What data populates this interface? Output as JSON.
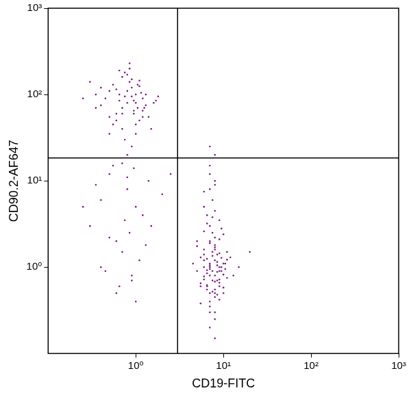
{
  "chart_data": {
    "type": "scatter",
    "log": true,
    "grid": false,
    "color": "#7d1a87",
    "marker": "circle",
    "x_label": "CD19-FITC",
    "y_label": "CD90.2-AF647",
    "xlim": [
      0.1,
      1000
    ],
    "ylim": [
      0.1,
      1000
    ],
    "xticks": [
      {
        "value": 1,
        "label": "10⁰"
      },
      {
        "value": 10,
        "label": "10¹"
      },
      {
        "value": 100,
        "label": "10²"
      },
      {
        "value": 1000,
        "label": "10³"
      }
    ],
    "yticks": [
      {
        "value": 1,
        "label": "10⁰"
      },
      {
        "value": 10,
        "label": "10¹"
      },
      {
        "value": 100,
        "label": "10²"
      },
      {
        "value": 1000,
        "label": "10³"
      }
    ],
    "quadrant_x": 3,
    "quadrant_y": 18.4,
    "x": [
      0.8,
      1.0,
      0.6,
      1.2,
      0.9,
      0.7,
      1.1,
      0.5,
      1.3,
      0.85,
      0.95,
      0.75,
      1.05,
      0.65,
      1.4,
      0.55,
      0.9,
      1.15,
      0.7,
      0.8,
      0.45,
      1.0,
      0.6,
      1.25,
      0.85,
      0.35,
      1.6,
      0.75,
      0.95,
      1.1,
      0.3,
      0.5,
      0.9,
      1.8,
      0.7,
      0.4,
      1.0,
      0.65,
      1.2,
      0.8,
      0.25,
      0.55,
      1.5,
      0.95,
      0.6,
      1.05,
      0.85,
      0.4,
      1.3,
      0.7,
      0.9,
      1.0,
      0.75,
      0.5,
      1.2,
      0.35,
      0.65,
      1.7,
      0.8,
      1.1,
      0.5,
      0.8,
      1.0,
      0.3,
      0.6,
      1.4,
      0.7,
      0.9,
      0.4,
      1.2,
      0.55,
      0.85,
      1.1,
      0.35,
      0.65,
      2.0,
      0.75,
      0.45,
      0.95,
      1.3,
      0.6,
      0.8,
      0.25,
      1.0,
      0.5,
      1.5,
      0.7,
      0.9,
      0.4,
      2.5,
      7,
      8,
      6,
      9,
      7.5,
      8.5,
      6.5,
      10,
      7,
      8,
      5.5,
      9.5,
      7,
      8,
      6,
      11,
      7.5,
      8,
      6.5,
      9,
      7,
      8.5,
      5,
      10,
      7,
      8,
      6,
      9,
      7.5,
      12,
      6.5,
      8,
      7,
      9.5,
      5.5,
      8,
      7,
      10.5,
      6,
      8.5,
      7,
      9,
      6.5,
      8,
      7.5,
      11,
      5,
      8,
      7,
      9,
      6,
      8.5,
      7,
      10,
      7.5,
      8,
      6.5,
      9,
      4.5,
      13,
      7,
      8,
      6,
      9,
      7.5,
      8.5,
      6.5,
      10,
      7,
      8,
      5.5,
      9.5,
      7,
      8,
      6,
      11,
      7.5,
      8,
      6.5,
      9,
      7,
      8.5,
      5,
      10,
      7,
      8,
      6,
      9,
      7.5,
      15,
      6.5,
      8,
      7,
      9.5,
      5.5,
      8,
      7,
      10.5,
      6,
      20
    ],
    "values": [
      80,
      100,
      60,
      90,
      120,
      70,
      50,
      110,
      75,
      140,
      65,
      95,
      130,
      85,
      55,
      45,
      150,
      105,
      40,
      170,
      90,
      35,
      115,
      70,
      200,
      100,
      80,
      30,
      60,
      125,
      140,
      55,
      25,
      95,
      160,
      75,
      45,
      190,
      65,
      110,
      90,
      130,
      40,
      85,
      50,
      70,
      230,
      120,
      100,
      60,
      95,
      80,
      180,
      35,
      55,
      70,
      100,
      85,
      20,
      145,
      12,
      8,
      5,
      3,
      2,
      10,
      1.5,
      0.8,
      6,
      4,
      15,
      2.5,
      1.2,
      9,
      0.6,
      7,
      3.5,
      0.9,
      14,
      1.8,
      0.5,
      11,
      5,
      0.4,
      2.2,
      3,
      16,
      0.7,
      1,
      12,
      1.0,
      0.8,
      1.2,
      0.9,
      1.5,
      0.7,
      0.6,
      1.1,
      2.0,
      0.5,
      1.3,
      0.9,
      0.4,
      1.8,
      1.0,
      0.75,
      2.5,
      1.2,
      0.85,
      0.6,
      3.0,
      1.4,
      0.9,
      0.5,
      0.35,
      2.2,
      1.6,
      1.0,
      0.7,
      1.3,
      4.0,
      0.55,
      1.1,
      2.8,
      0.65,
      1.7,
      0.3,
      0.95,
      5.0,
      1.05,
      0.8,
      3.5,
      1.25,
      0.45,
      6.0,
      1.5,
      2.0,
      0.25,
      1.9,
      0.72,
      7.5,
      1.15,
      0.5,
      2.4,
      0.9,
      9.0,
      0.62,
      1.45,
      1.1,
      0.8,
      12,
      0.68,
      2.6,
      0.42,
      1.35,
      0.88,
      3.2,
      0.58,
      15,
      1.6,
      0.38,
      1.0,
      0.2,
      4.5,
      0.78,
      1.22,
      0.52,
      20,
      0.92,
      2.1,
      1.05,
      0.48,
      1.75,
      0.82,
      25,
      0.3,
      1.4,
      0.66,
      3.8,
      1.0,
      0.55,
      10,
      0.95,
      1.28,
      0.6,
      0.15,
      8,
      1.1,
      0.72,
      1.5
    ]
  }
}
